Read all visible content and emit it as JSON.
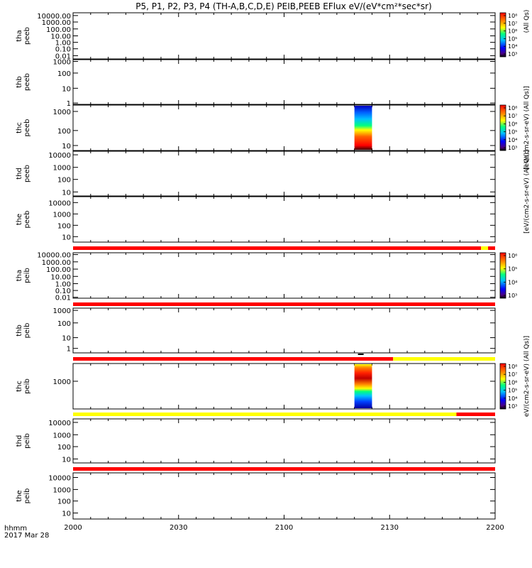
{
  "title": "P5, P1, P2, P3, P4 (TH-A,B,C,D,E) PEIB,PEEB EFlux eV/(eV*cm²*sec*sr)",
  "date_label": "2017 Mar 28",
  "time_unit_label": "hhmm",
  "colorbar_units": {
    "peeb_main": "[eV/(cm2-s-sr-eV) (All Qs)]",
    "peeb_top_partial": "(All Qs)",
    "peib_main": "[eV/(cm2-s-sr-eV) (All Qs)]",
    "peib_lower": "eV/(cm2-s-sr-eV) (All Qs)]"
  },
  "colorbar_labels": {
    "peeb_top": [
      "10⁸",
      "10⁷",
      "10⁶",
      "10⁵",
      "10⁴",
      "10³"
    ],
    "peeb_thc": [
      "10⁸",
      "10⁷",
      "10⁶",
      "10⁵",
      "10⁴",
      "10³"
    ],
    "peib_tha": [
      "10⁶",
      "10⁵",
      "10⁴",
      "10³"
    ],
    "peib_thc": [
      "10⁸",
      "10⁷",
      "10⁶",
      "10⁵",
      "10⁴",
      "10³"
    ]
  },
  "colors": {
    "red": "#ff0000",
    "yellow": "#ffff00",
    "black": "#000000"
  },
  "chart_data": {
    "type": "heatmap",
    "x_ticks": [
      "2000",
      "2030",
      "2100",
      "2130",
      "2200"
    ],
    "panels": [
      {
        "probe": "tha",
        "species": "peeb",
        "y_ticks": [
          "10000.00",
          "1000.00",
          "100.00",
          "10.00",
          "1.00",
          "0.10",
          "0.01"
        ]
      },
      {
        "probe": "thb",
        "species": "peeb",
        "y_ticks": [
          "1000",
          "100",
          "10",
          "1"
        ]
      },
      {
        "probe": "thc",
        "species": "peeb",
        "y_ticks": [
          "1000",
          "100",
          "10"
        ]
      },
      {
        "probe": "thd",
        "species": "peeb",
        "y_ticks": [
          "10000",
          "1000",
          "100",
          "10"
        ]
      },
      {
        "probe": "the",
        "species": "peeb",
        "y_ticks": [
          "10000",
          "1000",
          "100",
          "10"
        ]
      },
      {
        "probe": "tha",
        "species": "peib",
        "y_ticks": [
          "10000.00",
          "1000.00",
          "100.00",
          "10.00",
          "1.00",
          "0.10",
          "0.01"
        ]
      },
      {
        "probe": "thb",
        "species": "peib",
        "y_ticks": [
          "1000",
          "100",
          "10",
          "1"
        ]
      },
      {
        "probe": "thc",
        "species": "peib",
        "y_ticks": [
          "1000"
        ]
      },
      {
        "probe": "thd",
        "species": "peib",
        "y_ticks": [
          "10000",
          "1000",
          "100",
          "10"
        ]
      },
      {
        "probe": "the",
        "species": "peib",
        "y_ticks": [
          "10000",
          "1000",
          "100",
          "10"
        ]
      }
    ],
    "spectrogram_blocks": [
      {
        "probe": "thc",
        "species": "peeb",
        "time_start": "2120",
        "time_end": "2125"
      },
      {
        "probe": "thc",
        "species": "peib",
        "time_start": "2120",
        "time_end": "2125"
      }
    ]
  }
}
